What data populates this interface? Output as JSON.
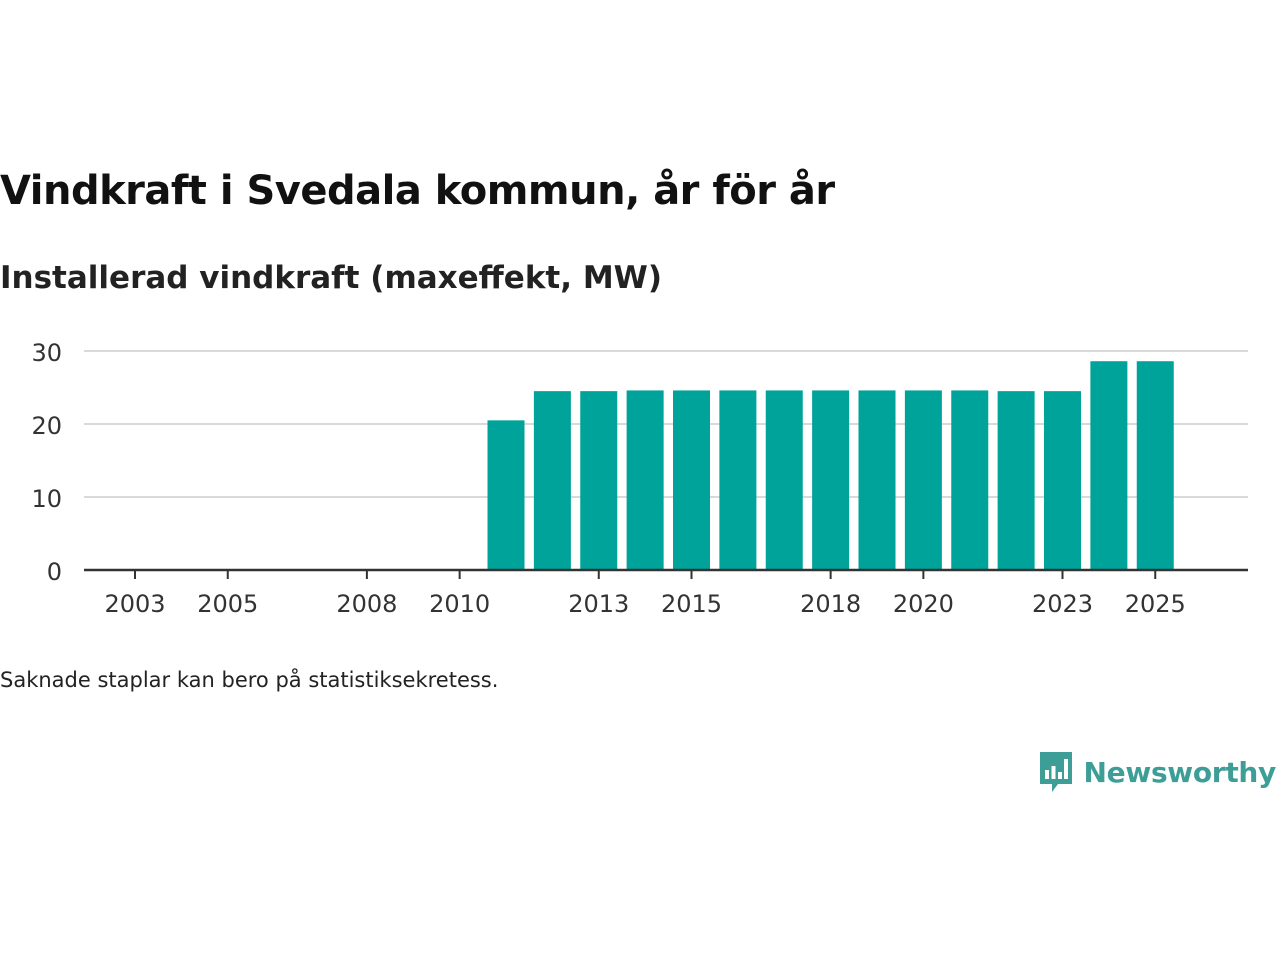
{
  "title": "Vindkraft i Svedala kommun, år för år",
  "subtitle": "Installerad vindkraft (maxeffekt, MW)",
  "note": "Saknade staplar kan bero på statistiksekretess.",
  "brand": {
    "name": "Newsworthy",
    "logo": "newsworthy-logo-icon",
    "color": "#3d9e97"
  },
  "colors": {
    "bar": "#00a39a",
    "grid": "#d9d9d9",
    "axis": "#333333",
    "tick_text": "#333333"
  },
  "chart_data": {
    "type": "bar",
    "title": "Vindkraft i Svedala kommun, år för år",
    "ylabel": "Installerad vindkraft (maxeffekt, MW)",
    "xlabel": "",
    "ylim": [
      0,
      30
    ],
    "yticks": [
      0,
      10,
      20,
      30
    ],
    "xlim": [
      2001.9,
      2027.0
    ],
    "xticks": [
      "2003",
      "2005",
      "2008",
      "2010",
      "2013",
      "2015",
      "2018",
      "2020",
      "2023",
      "2025"
    ],
    "grid": true,
    "categories": [
      "2003",
      "2004",
      "2005",
      "2006",
      "2007",
      "2008",
      "2009",
      "2010",
      "2011",
      "2012",
      "2013",
      "2014",
      "2015",
      "2016",
      "2017",
      "2018",
      "2019",
      "2020",
      "2021",
      "2022",
      "2023",
      "2024",
      "2025"
    ],
    "values": [
      0,
      0,
      0,
      0,
      0,
      0,
      0,
      0,
      20.5,
      24.5,
      24.5,
      24.6,
      24.6,
      24.6,
      24.6,
      24.6,
      24.6,
      24.6,
      24.6,
      24.5,
      24.5,
      28.6,
      28.6
    ]
  }
}
